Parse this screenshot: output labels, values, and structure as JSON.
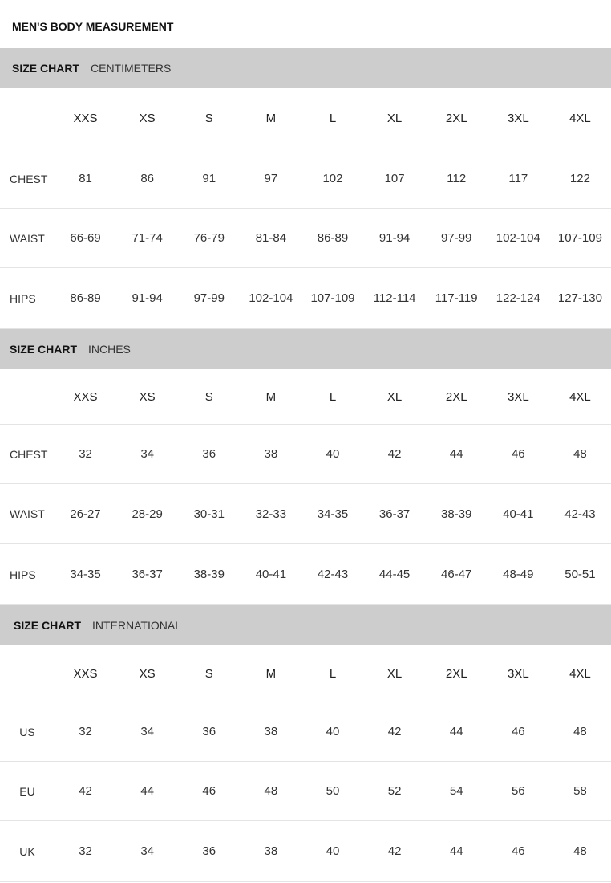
{
  "title": "MEN'S BODY MEASUREMENT",
  "sizes": [
    "XXS",
    "XS",
    "S",
    "M",
    "L",
    "XL",
    "2XL",
    "3XL",
    "4XL"
  ],
  "sections": [
    {
      "label": "SIZE CHART",
      "unit": "CENTIMETERS",
      "rows": [
        {
          "name": "CHEST",
          "values": [
            "81",
            "86",
            "91",
            "97",
            "102",
            "107",
            "112",
            "117",
            "122"
          ]
        },
        {
          "name": "WAIST",
          "values": [
            "66-69",
            "71-74",
            "76-79",
            "81-84",
            "86-89",
            "91-94",
            "97-99",
            "102-104",
            "107-109"
          ]
        },
        {
          "name": "HIPS",
          "values": [
            "86-89",
            "91-94",
            "97-99",
            "102-104",
            "107-109",
            "112-114",
            "117-119",
            "122-124",
            "127-130"
          ]
        }
      ]
    },
    {
      "label": "SIZE CHART",
      "unit": "INCHES",
      "rows": [
        {
          "name": "CHEST",
          "values": [
            "32",
            "34",
            "36",
            "38",
            "40",
            "42",
            "44",
            "46",
            "48"
          ]
        },
        {
          "name": "WAIST",
          "values": [
            "26-27",
            "28-29",
            "30-31",
            "32-33",
            "34-35",
            "36-37",
            "38-39",
            "40-41",
            "42-43"
          ]
        },
        {
          "name": "HIPS",
          "values": [
            "34-35",
            "36-37",
            "38-39",
            "40-41",
            "42-43",
            "44-45",
            "46-47",
            "48-49",
            "50-51"
          ]
        }
      ]
    },
    {
      "label": "SIZE CHART",
      "unit": "INTERNATIONAL",
      "rows": [
        {
          "name": "US",
          "values": [
            "32",
            "34",
            "36",
            "38",
            "40",
            "42",
            "44",
            "46",
            "48"
          ]
        },
        {
          "name": "EU",
          "values": [
            "42",
            "44",
            "46",
            "48",
            "50",
            "52",
            "54",
            "56",
            "58"
          ]
        },
        {
          "name": "UK",
          "values": [
            "32",
            "34",
            "36",
            "38",
            "40",
            "42",
            "44",
            "46",
            "48"
          ]
        }
      ]
    }
  ]
}
